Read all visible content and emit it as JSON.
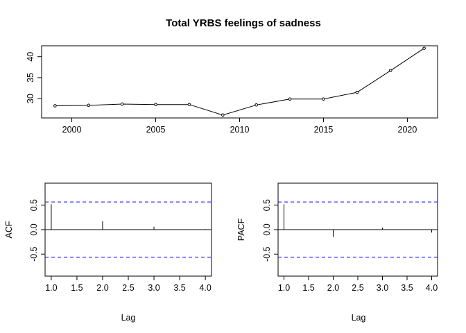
{
  "chart_data": [
    {
      "type": "line",
      "title": "Total YRBS feelings of sadness",
      "xlabel": "",
      "ylabel": "",
      "x": [
        1999,
        2001,
        2003,
        2005,
        2007,
        2009,
        2011,
        2013,
        2015,
        2017,
        2019,
        2021
      ],
      "values": [
        28.3,
        28.4,
        28.7,
        28.6,
        28.6,
        26.1,
        28.5,
        29.9,
        29.9,
        31.5,
        36.7,
        42.0
      ],
      "xlim": [
        1998.2,
        2021.8
      ],
      "ylim": [
        25.4,
        42.6
      ],
      "xticks": [
        2000,
        2005,
        2010,
        2015,
        2020
      ],
      "yticks": [
        30,
        35,
        40
      ],
      "grid": false,
      "markers": "points"
    },
    {
      "type": "bar",
      "title": "",
      "xlabel": "Lag",
      "ylabel": "ACF",
      "x": [
        1,
        2,
        3,
        4
      ],
      "values": [
        0.52,
        0.17,
        0.06,
        0.01
      ],
      "xlim": [
        0.88,
        4.12
      ],
      "ylim": [
        -0.95,
        0.95
      ],
      "xticks": [
        "1.0",
        "1.5",
        "2.0",
        "2.5",
        "3.0",
        "3.5",
        "4.0"
      ],
      "yticks": [
        "-0.5",
        "0.0",
        "0.5"
      ],
      "confidence_band": [
        -0.566,
        0.566
      ],
      "grid": false
    },
    {
      "type": "bar",
      "title": "",
      "xlabel": "Lag",
      "ylabel": "PACF",
      "x": [
        1,
        2,
        3,
        4
      ],
      "values": [
        0.52,
        -0.15,
        0.04,
        -0.06
      ],
      "xlim": [
        0.88,
        4.12
      ],
      "ylim": [
        -0.95,
        0.95
      ],
      "xticks": [
        "1.0",
        "1.5",
        "2.0",
        "2.5",
        "3.0",
        "3.5",
        "4.0"
      ],
      "yticks": [
        "-0.5",
        "0.0",
        "0.5"
      ],
      "confidence_band": [
        -0.566,
        0.566
      ],
      "grid": false
    }
  ],
  "colors": {
    "line": "#000000",
    "band": "#0000ff",
    "axis": "#000000"
  }
}
